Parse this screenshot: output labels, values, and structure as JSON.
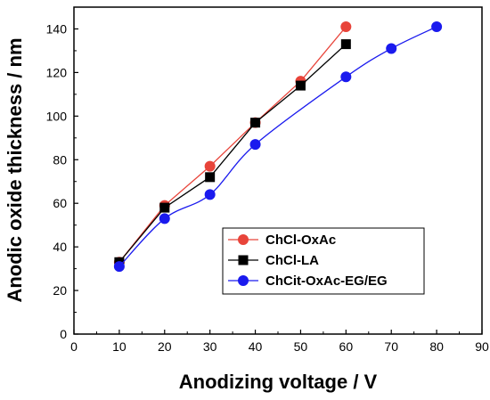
{
  "chart_data": {
    "type": "line",
    "title": "",
    "xlabel": "Anodizing voltage / V",
    "ylabel": "Anodic oxide thickness / nm",
    "xlim": [
      0,
      90
    ],
    "ylim": [
      0,
      150
    ],
    "xticks": [
      0,
      10,
      20,
      30,
      40,
      50,
      60,
      70,
      80,
      90
    ],
    "yticks": [
      0,
      20,
      40,
      60,
      80,
      100,
      120,
      140
    ],
    "grid": false,
    "legend_position": "lower-right",
    "series": [
      {
        "name": "ChCl-OxAc",
        "color": "#e8443a",
        "marker": "circle",
        "line_style": "straight",
        "x": [
          10,
          20,
          30,
          40,
          50,
          60
        ],
        "y": [
          33,
          59,
          77,
          97,
          116,
          141
        ]
      },
      {
        "name": "ChCl-LA",
        "color": "#000000",
        "marker": "square",
        "line_style": "straight",
        "x": [
          10,
          20,
          30,
          40,
          50,
          60
        ],
        "y": [
          33,
          58,
          72,
          97,
          114,
          133
        ]
      },
      {
        "name": "ChCit-OxAc-EG/EG",
        "color": "#1a1aee",
        "marker": "circle",
        "line_style": "smooth",
        "x": [
          10,
          20,
          30,
          40,
          60,
          70,
          80
        ],
        "y": [
          31,
          53,
          64,
          87,
          118,
          131,
          141
        ]
      }
    ]
  }
}
